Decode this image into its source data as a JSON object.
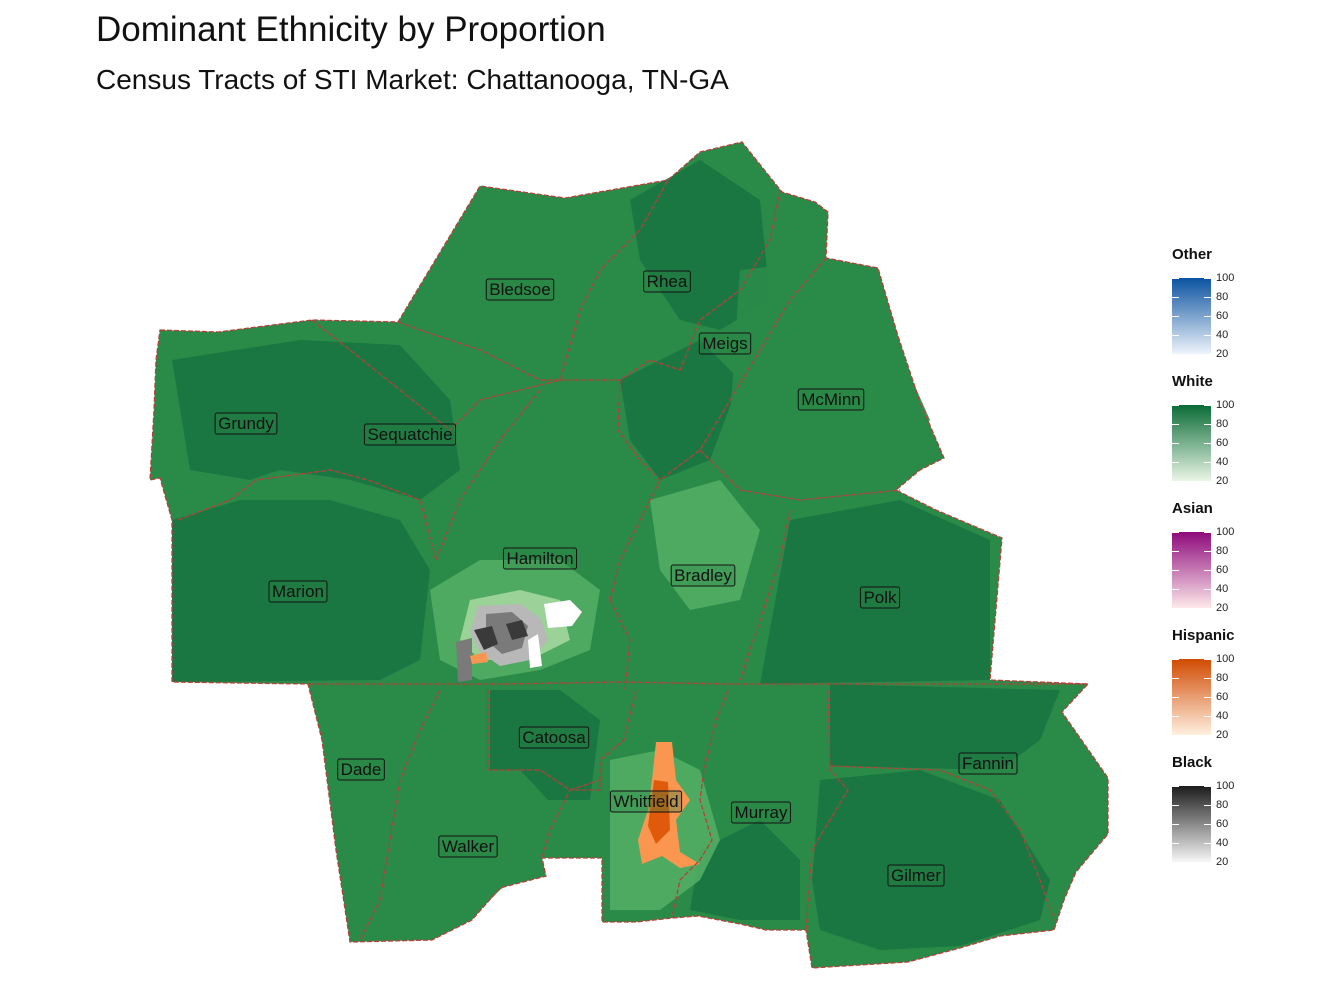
{
  "title": "Dominant Ethnicity by Proportion",
  "subtitle": "Census Tracts of STI Market: Chattanooga, TN-GA",
  "map": {
    "colors": {
      "white_dark": "#1a7441",
      "white_mid": "#2a8b49",
      "white_light": "#52ad64",
      "white_pale": "#a3d69f",
      "county_border": "#b5403a",
      "black_dark": "#3a3a3a",
      "black_mid": "#7a7a7a",
      "black_light": "#b8b8b8",
      "hispanic_dark": "#e05a0c",
      "hispanic_light": "#fb9650"
    },
    "counties": [
      {
        "id": "bledsoe",
        "name": "Bledsoe"
      },
      {
        "id": "rhea",
        "name": "Rhea"
      },
      {
        "id": "meigs",
        "name": "Meigs"
      },
      {
        "id": "mcminn",
        "name": "McMinn"
      },
      {
        "id": "grundy",
        "name": "Grundy"
      },
      {
        "id": "sequatchie",
        "name": "Sequatchie"
      },
      {
        "id": "hamilton",
        "name": "Hamilton"
      },
      {
        "id": "bradley",
        "name": "Bradley"
      },
      {
        "id": "marion",
        "name": "Marion"
      },
      {
        "id": "polk",
        "name": "Polk"
      },
      {
        "id": "catoosa",
        "name": "Catoosa"
      },
      {
        "id": "dade",
        "name": "Dade"
      },
      {
        "id": "whitfield",
        "name": "Whitfield"
      },
      {
        "id": "murray",
        "name": "Murray"
      },
      {
        "id": "fannin",
        "name": "Fannin"
      },
      {
        "id": "walker",
        "name": "Walker"
      },
      {
        "id": "gilmer",
        "name": "Gilmer"
      }
    ]
  },
  "legend": {
    "ticks": [
      "100",
      "80",
      "60",
      "40",
      "20"
    ],
    "entries": [
      {
        "title": "Other",
        "color_high": "#0b52a0",
        "color_low": "#eef4fb"
      },
      {
        "title": "White",
        "color_high": "#0a6b37",
        "color_low": "#eaf6e6"
      },
      {
        "title": "Asian",
        "color_high": "#8e0a7c",
        "color_low": "#fde9ea"
      },
      {
        "title": "Hispanic",
        "color_high": "#d14a02",
        "color_low": "#fff0e0"
      },
      {
        "title": "Black",
        "color_high": "#1c1c1c",
        "color_low": "#f7f7f7"
      }
    ]
  }
}
